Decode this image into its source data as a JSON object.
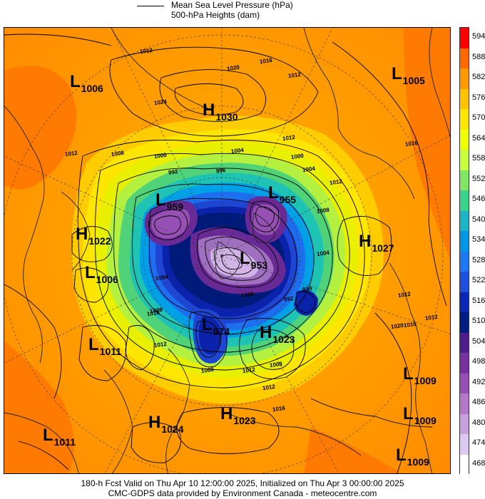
{
  "legend": {
    "line_label": "Mean Sea Level Pressure (hPa)",
    "fill_label": "500-hPa Heights (dam)"
  },
  "map": {
    "systems": [
      {
        "type": "L",
        "value": "1006"
      },
      {
        "type": "H",
        "value": "1030"
      },
      {
        "type": "L",
        "value": "1005"
      },
      {
        "type": "L",
        "value": "959"
      },
      {
        "type": "L",
        "value": "955"
      },
      {
        "type": "H",
        "value": "1022"
      },
      {
        "type": "H",
        "value": "1027"
      },
      {
        "type": "L",
        "value": "953"
      },
      {
        "type": "L",
        "value": "1006"
      },
      {
        "type": "L",
        "value": "974"
      },
      {
        "type": "H",
        "value": "1023"
      },
      {
        "type": "L",
        "value": "1011"
      },
      {
        "type": "L",
        "value": "1009"
      },
      {
        "type": "L",
        "value": "1009"
      },
      {
        "type": "H",
        "value": "1023"
      },
      {
        "type": "H",
        "value": "1024"
      },
      {
        "type": "L",
        "value": "1011"
      },
      {
        "type": "L",
        "value": "1009"
      }
    ],
    "isobar_labels": [
      "1012",
      "1020",
      "1016",
      "1012",
      "1024",
      "1012",
      "1008",
      "1000",
      "992",
      "996",
      "1004",
      "1012",
      "1000",
      "1004",
      "1012",
      "1008",
      "1016",
      "1004",
      "984",
      "1000",
      "992",
      "1016",
      "1004",
      "1008",
      "1000",
      "1012",
      "1008",
      "1012",
      "1016",
      "1012",
      "1012",
      "1020",
      "1016",
      "1012"
    ]
  },
  "colorbar": {
    "ticks": [
      "594",
      "588",
      "582",
      "576",
      "570",
      "564",
      "558",
      "552",
      "546",
      "540",
      "534",
      "528",
      "522",
      "516",
      "510",
      "504",
      "498",
      "492",
      "486",
      "480",
      "474",
      "468"
    ],
    "colors": [
      "#ff0000",
      "#ff6a00",
      "#ff9a00",
      "#ffc400",
      "#ffe600",
      "#f0ff00",
      "#c8ff3c",
      "#82e664",
      "#3cd28c",
      "#1eb4c8",
      "#0096e6",
      "#1e78f0",
      "#1e50dc",
      "#0a28b4",
      "#001e82",
      "#501e8c",
      "#7832a0",
      "#9650b4",
      "#b478c8",
      "#c8a0dc",
      "#dcc8f0",
      "#ffffff"
    ]
  },
  "footer": {
    "line1": "180-h Fcst Valid on Thu Apr 10 12:00:00 2025, Initialized on Thu Apr  3 00:00:00 2025",
    "line2": "CMC-GDPS data provided by Environment Canada - meteocentre.com"
  }
}
